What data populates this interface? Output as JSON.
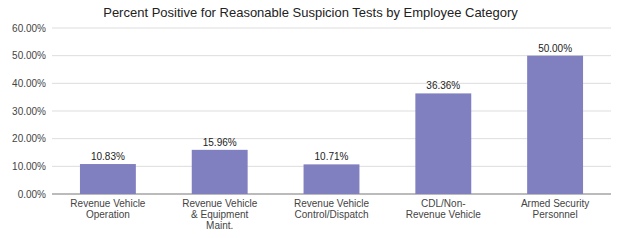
{
  "chart_data": {
    "type": "bar",
    "title": "Percent Positive for Reasonable Suspicion Tests by Employee Category",
    "categories": [
      "Revenue Vehicle\nOperation",
      "Revenue Vehicle\n& Equipment\nMaint.",
      "Revenue Vehicle\nControl/Dispatch",
      "CDL/Non-\nRevenue Vehicle",
      "Armed Security\nPersonnel"
    ],
    "values": [
      10.83,
      15.96,
      10.71,
      36.36,
      50.0
    ],
    "value_labels": [
      "10.83%",
      "15.96%",
      "10.71%",
      "36.36%",
      "50.00%"
    ],
    "data_labels": true,
    "color": "#8080c0",
    "ylim": [
      0,
      60
    ],
    "yticks": [
      {
        "value": 0,
        "label": "0.00%"
      },
      {
        "value": 10,
        "label": "10.00%"
      },
      {
        "value": 20,
        "label": "20.00%"
      },
      {
        "value": 30,
        "label": "30.00%"
      },
      {
        "value": 40,
        "label": "40.00%"
      },
      {
        "value": 50,
        "label": "50.00%"
      },
      {
        "value": 60,
        "label": "60.00%"
      }
    ],
    "grid": true
  }
}
